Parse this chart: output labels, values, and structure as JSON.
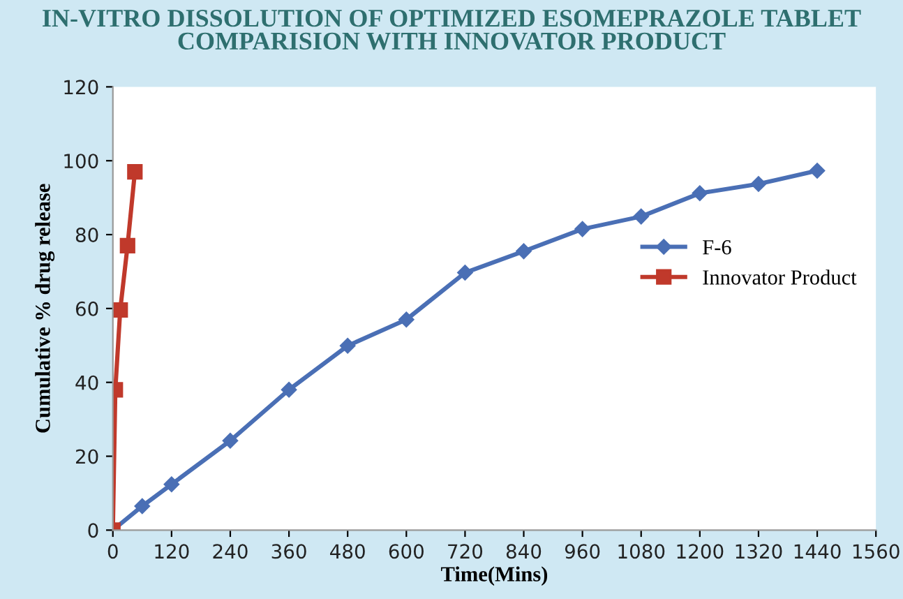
{
  "chart_data": {
    "type": "line",
    "title": "IN-VITRO DISSOLUTION OF OPTIMIZED ESOMEPRAZOLE TABLET\nCOMPARISION WITH INNOVATOR PRODUCT",
    "xlabel": "Time(Mins)",
    "ylabel": "Cumulative % drug release",
    "series": [
      {
        "name": "F-6",
        "color": "#4a6fb5",
        "marker": "diamond",
        "x": [
          0,
          60,
          120,
          240,
          360,
          480,
          600,
          720,
          840,
          960,
          1080,
          1200,
          1320,
          1440
        ],
        "values": [
          0,
          6.5,
          12.4,
          24.2,
          38,
          49.9,
          57,
          69.7,
          75.5,
          81.5,
          84.9,
          91.2,
          93.7,
          97.3
        ]
      },
      {
        "name": "Innovator Product",
        "color": "#c0392b",
        "marker": "square",
        "x": [
          0,
          5,
          15,
          30,
          45
        ],
        "values": [
          0,
          38,
          59.6,
          77,
          97
        ]
      }
    ],
    "xlim": [
      0,
      1560
    ],
    "xticks": [
      0,
      120,
      240,
      360,
      480,
      600,
      720,
      840,
      960,
      1080,
      1200,
      1320,
      1440,
      1560
    ],
    "ylim": [
      0,
      120
    ],
    "yticks": [
      0,
      20,
      40,
      60,
      80,
      100,
      120
    ],
    "grid": false,
    "legend": "right",
    "line_style": "solid"
  }
}
